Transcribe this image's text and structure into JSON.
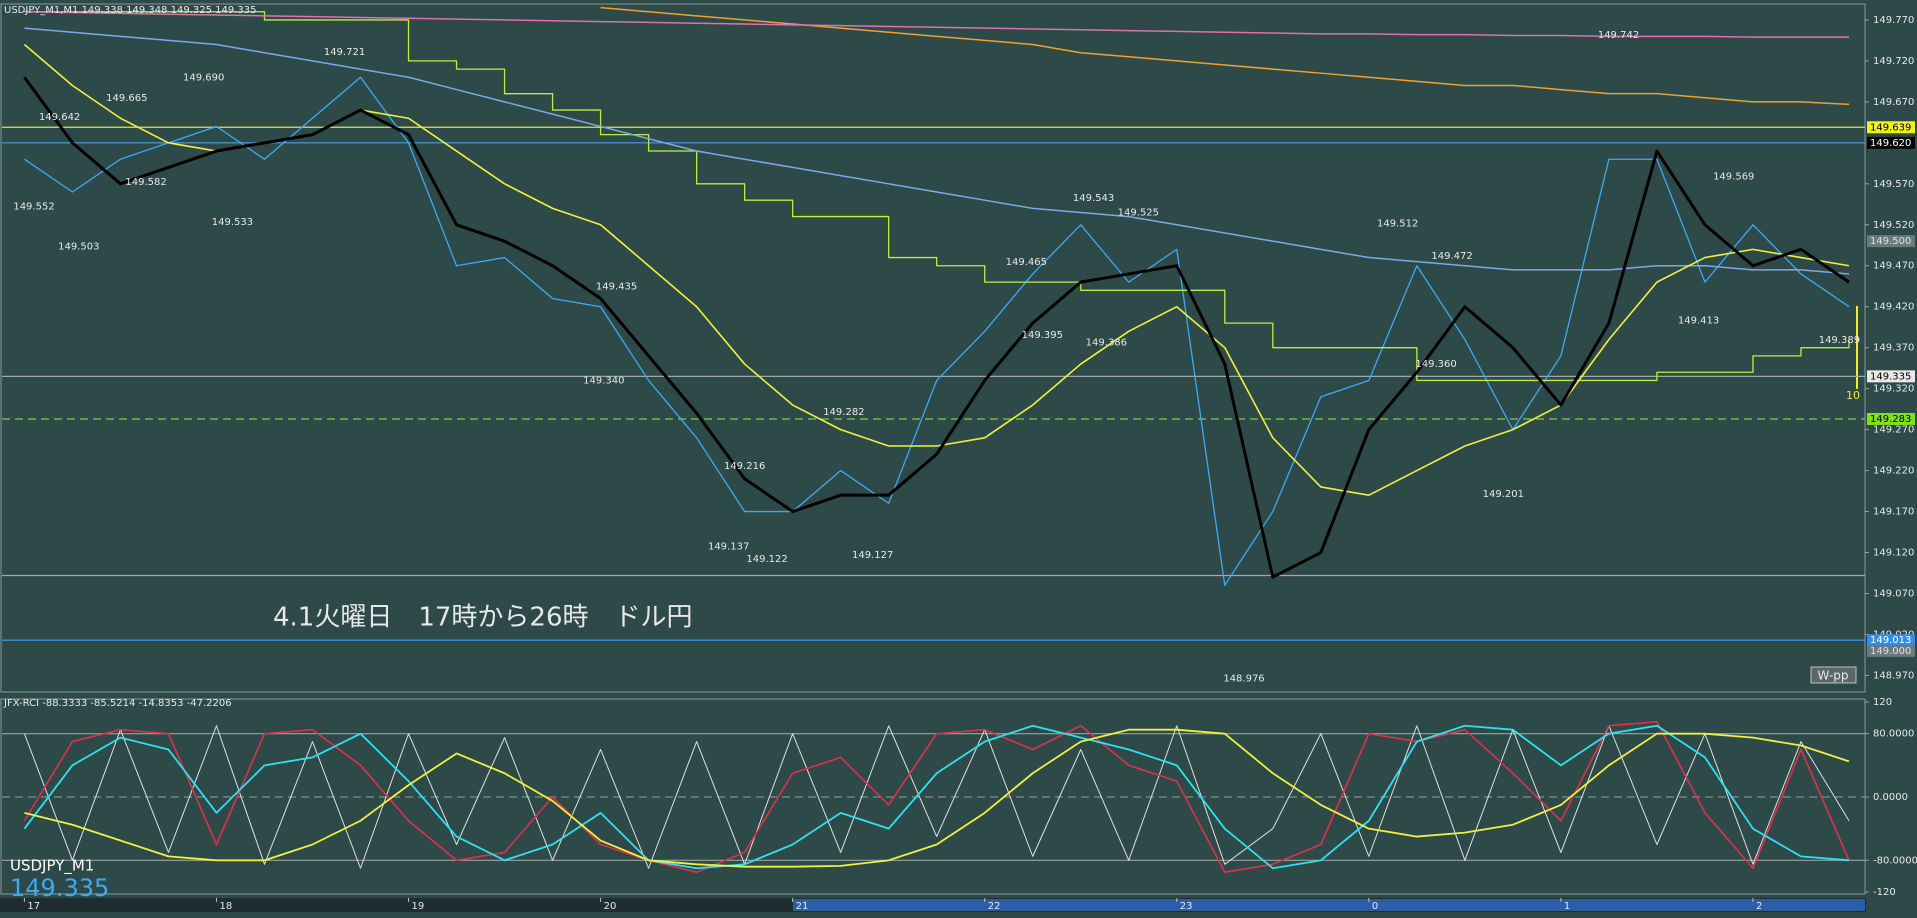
{
  "chart_data": [
    {
      "type": "line",
      "title": "USDJPY_M1,M1  149.338 149.348 149.325 149.335",
      "annotation": "4.1火曜日　17時から26時　ドル円",
      "marker_label": "10",
      "badge": "W-pp",
      "x": [
        0,
        15,
        30,
        45,
        60,
        75,
        90,
        105,
        120,
        135,
        150,
        165,
        180,
        195,
        210,
        225,
        240,
        255,
        270,
        285,
        300,
        315,
        330,
        345,
        360,
        375,
        390,
        405,
        420,
        435,
        450,
        465,
        480,
        495,
        510,
        525,
        540,
        555,
        570
      ],
      "xlim": [
        -7,
        575
      ],
      "ylim": [
        148.951,
        149.787
      ],
      "yticks": [
        {
          "value": 149.77,
          "label": "149.770"
        },
        {
          "value": 149.72,
          "label": "149.720"
        },
        {
          "value": 149.67,
          "label": "149.670"
        },
        {
          "value": 149.57,
          "label": "149.570"
        },
        {
          "value": 149.52,
          "label": "149.520"
        },
        {
          "value": 149.47,
          "label": "149.470"
        },
        {
          "value": 149.42,
          "label": "149.420"
        },
        {
          "value": 149.37,
          "label": "149.370"
        },
        {
          "value": 149.32,
          "label": "149.320"
        },
        {
          "value": 149.27,
          "label": "149.270"
        },
        {
          "value": 149.22,
          "label": "149.220"
        },
        {
          "value": 149.17,
          "label": "149.170"
        },
        {
          "value": 149.12,
          "label": "149.120"
        },
        {
          "value": 149.07,
          "label": "149.070"
        },
        {
          "value": 149.02,
          "label": "149.020"
        },
        {
          "value": 148.97,
          "label": "148.970"
        }
      ],
      "series": [
        {
          "color": "#3fa9f5",
          "width": 1.3,
          "values": [
            149.6,
            149.56,
            149.6,
            149.62,
            149.64,
            149.6,
            149.65,
            149.7,
            149.62,
            149.47,
            149.48,
            149.43,
            149.42,
            149.33,
            149.26,
            149.17,
            149.17,
            149.22,
            149.18,
            149.33,
            149.39,
            149.46,
            149.52,
            149.45,
            149.49,
            149.08,
            149.17,
            149.31,
            149.33,
            149.47,
            149.38,
            149.27,
            149.36,
            149.6,
            149.6,
            149.45,
            149.52,
            149.46,
            149.42
          ]
        },
        {
          "color": "#b8f040",
          "width": 1.3,
          "step": true,
          "values": [
            149.78,
            149.78,
            149.78,
            149.78,
            149.78,
            149.77,
            149.77,
            149.77,
            149.72,
            149.71,
            149.68,
            149.66,
            149.63,
            149.61,
            149.57,
            149.55,
            149.53,
            149.53,
            149.48,
            149.47,
            149.45,
            149.45,
            149.44,
            149.44,
            149.44,
            149.4,
            149.37,
            149.37,
            149.37,
            149.33,
            149.33,
            149.33,
            149.33,
            149.33,
            149.34,
            149.34,
            149.36,
            149.37,
            149.38
          ]
        },
        {
          "color": "#7fa8e8",
          "width": 1.5,
          "values": [
            149.76,
            149.755,
            149.75,
            149.745,
            149.74,
            149.73,
            149.72,
            149.71,
            149.7,
            149.685,
            149.67,
            149.655,
            149.64,
            149.625,
            149.61,
            149.6,
            149.59,
            149.58,
            149.57,
            149.56,
            149.55,
            149.54,
            149.535,
            149.53,
            149.52,
            149.51,
            149.5,
            149.49,
            149.48,
            149.475,
            149.47,
            149.465,
            149.465,
            149.465,
            149.47,
            149.47,
            149.465,
            149.465,
            149.46
          ]
        },
        {
          "color": "#f0a030",
          "width": 1.5,
          "values": [
            null,
            null,
            null,
            null,
            null,
            null,
            null,
            null,
            null,
            null,
            null,
            null,
            149.785,
            149.78,
            149.775,
            149.77,
            149.765,
            149.76,
            149.755,
            149.75,
            149.745,
            149.74,
            149.73,
            149.725,
            149.72,
            149.715,
            149.71,
            149.705,
            149.7,
            149.695,
            149.69,
            149.69,
            149.685,
            149.68,
            149.68,
            149.675,
            149.67,
            149.67,
            149.667
          ]
        },
        {
          "color": "#e070b0",
          "width": 1.5,
          "values": [
            149.78,
            149.779,
            149.778,
            149.777,
            149.776,
            149.775,
            149.774,
            149.773,
            149.772,
            149.771,
            149.77,
            149.769,
            149.768,
            149.767,
            149.766,
            149.765,
            149.764,
            149.763,
            149.762,
            149.761,
            149.76,
            149.759,
            149.758,
            149.757,
            149.756,
            149.755,
            149.754,
            149.753,
            149.753,
            149.752,
            149.752,
            149.751,
            149.751,
            149.75,
            149.75,
            149.75,
            149.749,
            149.749,
            149.749
          ]
        },
        {
          "color": "#f0f040",
          "width": 1.6,
          "values": [
            149.74,
            149.69,
            149.65,
            149.62,
            149.61,
            149.62,
            149.63,
            149.66,
            149.65,
            149.61,
            149.57,
            149.54,
            149.52,
            149.47,
            149.42,
            149.35,
            149.3,
            149.27,
            149.25,
            149.25,
            149.26,
            149.3,
            149.35,
            149.39,
            149.42,
            149.37,
            149.26,
            149.2,
            149.19,
            149.22,
            149.25,
            149.27,
            149.3,
            149.38,
            149.45,
            149.48,
            149.49,
            149.48,
            149.47
          ]
        },
        {
          "color": "#000000",
          "width": 3,
          "values": [
            149.7,
            149.62,
            149.57,
            149.59,
            149.61,
            149.62,
            149.63,
            149.66,
            149.63,
            149.52,
            149.5,
            149.47,
            149.43,
            149.36,
            149.29,
            149.21,
            149.17,
            149.19,
            149.19,
            149.24,
            149.33,
            149.4,
            149.45,
            149.46,
            149.47,
            149.35,
            149.09,
            149.12,
            149.27,
            149.34,
            149.42,
            149.37,
            149.3,
            149.4,
            149.61,
            149.52,
            149.47,
            149.49,
            149.45
          ]
        }
      ],
      "levels": [
        {
          "value": 149.639,
          "color": "#e6e62e",
          "dash": false
        },
        {
          "value": 149.62,
          "color": "#3fa0f0",
          "dash": false
        },
        {
          "value": 149.335,
          "color": "#a0a8a8",
          "dash": false
        },
        {
          "value": 149.283,
          "color": "#7fd040",
          "dash": true
        },
        {
          "value": 149.092,
          "color": "#e080e0",
          "dash": false
        },
        {
          "value": 149.013,
          "color": "#3fa0f0",
          "dash": false
        }
      ],
      "price_tags": [
        {
          "value": 149.639,
          "label": "149.639",
          "color": "#f0f020",
          "text_color": "#000000"
        },
        {
          "value": 149.62,
          "label": "149.620",
          "color": "#000000",
          "text_color": "#ffffff"
        },
        {
          "value": 149.5,
          "label": "149.500",
          "color": "#6a7a7a",
          "text_color": "#e0e0e0"
        },
        {
          "value": 149.335,
          "label": "149.335",
          "color": "#e8e8e8",
          "text_color": "#000000"
        },
        {
          "value": 149.283,
          "label": "149.283",
          "color": "#7fe020",
          "text_color": "#000000"
        },
        {
          "value": 149.013,
          "label": "149.013",
          "color": "#2f8ff0",
          "text_color": "#ffffff"
        },
        {
          "value": 149.0,
          "label": "149.000",
          "color": "#6a7a7a",
          "text_color": "#e0e0e0"
        }
      ],
      "swing_points": {
        "x": [
          3,
          11,
          32,
          17,
          38,
          56,
          65,
          100,
          185,
          181,
          225,
          220,
          232,
          256,
          265,
          313,
          334,
          348,
          318,
          338,
          381,
          429,
          446,
          441,
          462,
          498,
          534,
          523,
          567
        ],
        "values": [
          149.552,
          149.642,
          149.665,
          149.503,
          149.582,
          149.69,
          149.533,
          149.721,
          149.435,
          149.34,
          149.216,
          149.137,
          149.122,
          149.282,
          149.127,
          149.465,
          149.543,
          149.525,
          149.395,
          149.386,
          148.976,
          149.512,
          149.472,
          149.36,
          149.201,
          149.742,
          149.569,
          149.413,
          149.389
        ],
        "value_labels": [
          "149.552",
          "149.642",
          "149.665",
          "149.503",
          "149.582",
          "149.690",
          "149.533",
          "149.721",
          "149.435",
          "149.340",
          "149.216",
          "149.137",
          "149.122",
          "149.282",
          "149.127",
          "149.465",
          "149.543",
          "149.525",
          "149.395",
          "149.386",
          "148.976",
          "149.512",
          "149.472",
          "149.360",
          "149.201",
          "149.742",
          "149.569",
          "149.413",
          "149.389"
        ]
      }
    },
    {
      "type": "line",
      "title": "JFX-RCI -88.3333 -85.5214 -14.8353 -47.2206",
      "symbol": "USDJPY_M1",
      "last_price": 149.335,
      "x": [
        0,
        15,
        30,
        45,
        60,
        75,
        90,
        105,
        120,
        135,
        150,
        165,
        180,
        195,
        210,
        225,
        240,
        255,
        270,
        285,
        300,
        315,
        330,
        345,
        360,
        375,
        390,
        405,
        420,
        435,
        450,
        465,
        480,
        495,
        510,
        525,
        540,
        555,
        570
      ],
      "xlim": [
        -7,
        575
      ],
      "xticks": [
        {
          "value": 0,
          "label": "17"
        },
        {
          "value": 60,
          "label": "18"
        },
        {
          "value": 120,
          "label": "19"
        },
        {
          "value": 180,
          "label": "20"
        },
        {
          "value": 240,
          "label": "21"
        },
        {
          "value": 300,
          "label": "22"
        },
        {
          "value": 360,
          "label": "23"
        },
        {
          "value": 420,
          "label": "0"
        },
        {
          "value": 480,
          "label": "1"
        },
        {
          "value": 540,
          "label": "2"
        }
      ],
      "ylim": [
        -120,
        120
      ],
      "yticks": [
        120,
        {
          "value": 80,
          "label": "80.0000"
        },
        {
          "value": 0,
          "label": "0.0000"
        },
        {
          "value": -80,
          "label": "-80.0000"
        },
        -120
      ],
      "levels": [
        {
          "value": 80,
          "color": "#9aa4a4",
          "dash": false
        },
        {
          "value": 0,
          "color": "#7f9090",
          "dash": true
        },
        {
          "value": -80,
          "color": "#9aa4a4",
          "dash": false
        }
      ],
      "series": [
        {
          "color": "#e0e0e0",
          "width": 1,
          "values": [
            80,
            -80,
            85,
            -70,
            90,
            -85,
            70,
            -90,
            80,
            -60,
            75,
            -80,
            60,
            -90,
            70,
            -85,
            80,
            -70,
            90,
            -50,
            85,
            -75,
            60,
            -80,
            90,
            -85,
            -40,
            80,
            -75,
            90,
            -80,
            85,
            -70,
            90,
            -60,
            80,
            -85,
            70,
            -30
          ]
        },
        {
          "color": "#e0304a",
          "width": 1.6,
          "values": [
            -30,
            70,
            85,
            80,
            -60,
            80,
            85,
            40,
            -30,
            -80,
            -70,
            0,
            -60,
            -80,
            -95,
            -70,
            30,
            50,
            -10,
            80,
            85,
            60,
            90,
            40,
            20,
            -95,
            -85,
            -60,
            80,
            70,
            85,
            30,
            -30,
            90,
            95,
            -20,
            -90,
            60,
            -80
          ]
        },
        {
          "color": "#30e0f0",
          "width": 1.8,
          "values": [
            -40,
            40,
            75,
            60,
            -20,
            40,
            50,
            80,
            20,
            -50,
            -80,
            -60,
            -20,
            -80,
            -90,
            -85,
            -60,
            -20,
            -40,
            30,
            70,
            90,
            75,
            60,
            40,
            -40,
            -90,
            -80,
            -30,
            70,
            90,
            85,
            40,
            80,
            90,
            50,
            -40,
            -75,
            -80
          ]
        },
        {
          "color": "#f0f040",
          "width": 1.8,
          "values": [
            -20,
            -35,
            -55,
            -75,
            -80,
            -80,
            -60,
            -30,
            15,
            55,
            30,
            -5,
            -55,
            -80,
            -85,
            -88,
            -88,
            -87,
            -80,
            -60,
            -20,
            30,
            70,
            85,
            85,
            80,
            30,
            -10,
            -40,
            -50,
            -45,
            -35,
            -10,
            40,
            80,
            80,
            75,
            65,
            45
          ]
        }
      ]
    }
  ]
}
